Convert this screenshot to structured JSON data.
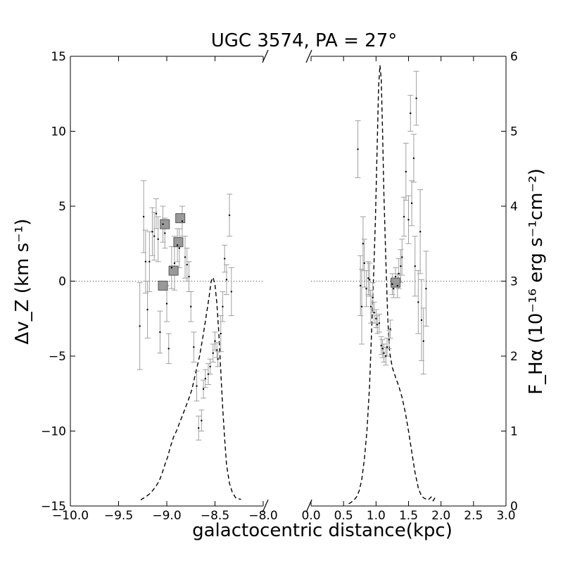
{
  "chart_data": {
    "type": "scatter",
    "title": "UGC 3574, PA = 27°",
    "xlabel": "galactocentric distance(kpc)",
    "ylabel": "Δv_Z (km s⁻¹)",
    "y2label": "F_Hα (10⁻¹⁶ erg s⁻¹cm⁻²)",
    "ylim": [
      -15,
      15
    ],
    "y2lim": [
      0,
      6
    ],
    "y_ticks": [
      -15,
      -10,
      -5,
      0,
      5,
      10,
      15
    ],
    "y2_ticks": [
      0,
      1,
      2,
      3,
      4,
      5,
      6
    ],
    "panels": [
      {
        "xlim": [
          -10.0,
          -8.0
        ],
        "x_ticks": [
          -10.0,
          -9.5,
          -9.0,
          -8.5,
          -8.0
        ],
        "velocity_points": [
          {
            "x": -9.28,
            "y": -3.0,
            "err": 2.9
          },
          {
            "x": -9.24,
            "y": 4.3,
            "err": 2.4
          },
          {
            "x": -9.22,
            "y": 1.3,
            "err": 2.1
          },
          {
            "x": -9.2,
            "y": -1.9,
            "err": 1.9
          },
          {
            "x": -9.18,
            "y": 1.3,
            "err": 2.0
          },
          {
            "x": -9.15,
            "y": 3.3,
            "err": 1.6
          },
          {
            "x": -9.13,
            "y": 3.0,
            "err": 1.6
          },
          {
            "x": -9.11,
            "y": 4.5,
            "err": 1.0
          },
          {
            "x": -9.09,
            "y": 2.8,
            "err": 1.5
          },
          {
            "x": -9.07,
            "y": -3.4,
            "err": 1.4
          },
          {
            "x": -9.04,
            "y": 3.8,
            "err": 1.2
          },
          {
            "x": -9.02,
            "y": 3.2,
            "err": 1.0
          },
          {
            "x": -9.0,
            "y": -1.5,
            "err": 1.2
          },
          {
            "x": -8.98,
            "y": -4.5,
            "err": 1.0
          },
          {
            "x": -8.95,
            "y": 0.9,
            "err": 1.4
          },
          {
            "x": -8.92,
            "y": 1.2,
            "err": 1.8
          },
          {
            "x": -8.89,
            "y": 2.4,
            "err": 1.1
          },
          {
            "x": -8.87,
            "y": 2.2,
            "err": 1.3
          },
          {
            "x": -8.84,
            "y": 4.0,
            "err": 1.0
          },
          {
            "x": -8.81,
            "y": 1.6,
            "err": 1.4
          },
          {
            "x": -8.79,
            "y": 1.1,
            "err": 1.1
          },
          {
            "x": -8.77,
            "y": 0.3,
            "err": 1.0
          },
          {
            "x": -8.75,
            "y": -1.7,
            "err": 1.0
          },
          {
            "x": -8.72,
            "y": -4.4,
            "err": 1.0
          },
          {
            "x": -8.69,
            "y": -7.0,
            "err": 1.0
          },
          {
            "x": -8.67,
            "y": -9.8,
            "err": 0.8
          },
          {
            "x": -8.64,
            "y": -9.3,
            "err": 0.7
          },
          {
            "x": -8.62,
            "y": -7.2,
            "err": 0.6
          },
          {
            "x": -8.6,
            "y": -6.5,
            "err": 0.6
          },
          {
            "x": -8.57,
            "y": -6.2,
            "err": 0.7
          },
          {
            "x": -8.55,
            "y": -5.7,
            "err": 0.5
          },
          {
            "x": -8.52,
            "y": -4.8,
            "err": 0.6
          },
          {
            "x": -8.5,
            "y": -4.0,
            "err": 0.6
          },
          {
            "x": -8.48,
            "y": -4.6,
            "err": 0.5
          },
          {
            "x": -8.47,
            "y": -5.2,
            "err": 0.5
          },
          {
            "x": -8.44,
            "y": -3.5,
            "err": 1.2
          },
          {
            "x": -8.42,
            "y": -1.7,
            "err": 1.0
          },
          {
            "x": -8.4,
            "y": 1.5,
            "err": 0.9
          },
          {
            "x": -8.38,
            "y": 0.1,
            "err": 1.0
          },
          {
            "x": -8.35,
            "y": 4.4,
            "err": 1.4
          },
          {
            "x": -8.33,
            "y": -0.7,
            "err": 1.6
          }
        ],
        "binned_points": [
          {
            "x": -9.02,
            "y": 3.8
          },
          {
            "x": -8.86,
            "y": 4.2
          },
          {
            "x": -8.88,
            "y": 2.6
          },
          {
            "x": -8.93,
            "y": 0.7
          },
          {
            "x": -9.04,
            "y": -0.3
          }
        ],
        "flux_profile": [
          [
            -9.27,
            0.08
          ],
          [
            -9.25,
            0.1
          ],
          [
            -9.22,
            0.12
          ],
          [
            -9.18,
            0.16
          ],
          [
            -9.15,
            0.2
          ],
          [
            -9.12,
            0.25
          ],
          [
            -9.08,
            0.33
          ],
          [
            -9.05,
            0.43
          ],
          [
            -9.02,
            0.55
          ],
          [
            -8.99,
            0.66
          ],
          [
            -8.96,
            0.8
          ],
          [
            -8.93,
            0.92
          ],
          [
            -8.9,
            1.0
          ],
          [
            -8.87,
            1.1
          ],
          [
            -8.84,
            1.2
          ],
          [
            -8.81,
            1.3
          ],
          [
            -8.78,
            1.4
          ],
          [
            -8.74,
            1.55
          ],
          [
            -8.7,
            1.78
          ],
          [
            -8.66,
            2.0
          ],
          [
            -8.62,
            2.3
          ],
          [
            -8.59,
            2.55
          ],
          [
            -8.56,
            2.8
          ],
          [
            -8.54,
            3.0
          ],
          [
            -8.52,
            3.05
          ],
          [
            -8.5,
            2.95
          ],
          [
            -8.48,
            2.7
          ],
          [
            -8.46,
            2.3
          ],
          [
            -8.44,
            1.8
          ],
          [
            -8.42,
            1.3
          ],
          [
            -8.4,
            0.9
          ],
          [
            -8.38,
            0.55
          ],
          [
            -8.35,
            0.3
          ],
          [
            -8.32,
            0.18
          ],
          [
            -8.28,
            0.1
          ],
          [
            -8.23,
            0.09
          ]
        ]
      },
      {
        "xlim": [
          0.0,
          3.0
        ],
        "x_ticks": [
          0.0,
          0.5,
          1.0,
          1.5,
          2.0,
          2.5,
          3.0
        ],
        "velocity_points": [
          {
            "x": 0.72,
            "y": 8.8,
            "err": 1.9
          },
          {
            "x": 0.76,
            "y": -0.3,
            "err": 2.0
          },
          {
            "x": 0.78,
            "y": -1.7,
            "err": 2.5
          },
          {
            "x": 0.8,
            "y": 2.5,
            "err": 1.8
          },
          {
            "x": 0.82,
            "y": 1.2,
            "err": 1.6
          },
          {
            "x": 0.85,
            "y": -0.5,
            "err": 1.2
          },
          {
            "x": 0.88,
            "y": 0.2,
            "err": 1.1
          },
          {
            "x": 0.9,
            "y": 0.1,
            "err": 1.1
          },
          {
            "x": 0.92,
            "y": -1.7,
            "err": 1.1
          },
          {
            "x": 0.95,
            "y": -1.1,
            "err": 1.0
          },
          {
            "x": 0.97,
            "y": -2.1,
            "err": 0.7
          },
          {
            "x": 1.0,
            "y": -2.5,
            "err": 0.6
          },
          {
            "x": 1.02,
            "y": -2.9,
            "err": 0.6
          },
          {
            "x": 1.05,
            "y": -2.8,
            "err": 0.6
          },
          {
            "x": 1.08,
            "y": -4.3,
            "err": 0.6
          },
          {
            "x": 1.1,
            "y": -4.5,
            "err": 0.6
          },
          {
            "x": 1.12,
            "y": -4.8,
            "err": 0.6
          },
          {
            "x": 1.15,
            "y": -5.0,
            "err": 0.6
          },
          {
            "x": 1.17,
            "y": -4.4,
            "err": 0.6
          },
          {
            "x": 1.2,
            "y": -3.9,
            "err": 0.6
          },
          {
            "x": 1.22,
            "y": -3.2,
            "err": 0.6
          },
          {
            "x": 1.25,
            "y": -0.2,
            "err": 0.7
          },
          {
            "x": 1.27,
            "y": -0.5,
            "err": 0.6
          },
          {
            "x": 1.3,
            "y": 0.3,
            "err": 0.6
          },
          {
            "x": 1.33,
            "y": -0.3,
            "err": 0.8
          },
          {
            "x": 1.35,
            "y": 0.5,
            "err": 1.0
          },
          {
            "x": 1.38,
            "y": 1.0,
            "err": 1.1
          },
          {
            "x": 1.4,
            "y": 1.6,
            "err": 1.2
          },
          {
            "x": 1.43,
            "y": 4.3,
            "err": 1.3
          },
          {
            "x": 1.46,
            "y": 7.3,
            "err": 1.9
          },
          {
            "x": 1.5,
            "y": 4.1,
            "err": 1.6
          },
          {
            "x": 1.53,
            "y": 11.2,
            "err": 1.2
          },
          {
            "x": 1.55,
            "y": 5.2,
            "err": 1.5
          },
          {
            "x": 1.58,
            "y": 8.2,
            "err": 1.6
          },
          {
            "x": 1.6,
            "y": 1.0,
            "err": 2.0
          },
          {
            "x": 1.62,
            "y": 12.2,
            "err": 1.8
          },
          {
            "x": 1.65,
            "y": -1.4,
            "err": 2.1
          },
          {
            "x": 1.68,
            "y": 3.3,
            "err": 2.8
          },
          {
            "x": 1.7,
            "y": -2.6,
            "err": 2.7
          },
          {
            "x": 1.73,
            "y": -4.0,
            "err": 2.2
          },
          {
            "x": 1.77,
            "y": -0.5,
            "err": 2.5
          }
        ],
        "binned_points": [
          {
            "x": 1.3,
            "y": -0.1
          }
        ],
        "flux_profile": [
          [
            0.58,
            0.03
          ],
          [
            0.62,
            0.05
          ],
          [
            0.66,
            0.08
          ],
          [
            0.7,
            0.12
          ],
          [
            0.74,
            0.2
          ],
          [
            0.78,
            0.35
          ],
          [
            0.82,
            0.62
          ],
          [
            0.86,
            1.0
          ],
          [
            0.9,
            1.6
          ],
          [
            0.93,
            2.3
          ],
          [
            0.96,
            3.0
          ],
          [
            0.99,
            3.8
          ],
          [
            1.02,
            4.9
          ],
          [
            1.04,
            5.6
          ],
          [
            1.06,
            5.88
          ],
          [
            1.08,
            5.7
          ],
          [
            1.1,
            5.0
          ],
          [
            1.12,
            4.2
          ],
          [
            1.15,
            3.3
          ],
          [
            1.18,
            2.5
          ],
          [
            1.21,
            2.05
          ],
          [
            1.25,
            1.85
          ],
          [
            1.3,
            1.72
          ],
          [
            1.35,
            1.6
          ],
          [
            1.4,
            1.45
          ],
          [
            1.45,
            1.25
          ],
          [
            1.5,
            1.0
          ],
          [
            1.55,
            0.72
          ],
          [
            1.6,
            0.45
          ],
          [
            1.65,
            0.24
          ],
          [
            1.7,
            0.13
          ],
          [
            1.75,
            0.1
          ],
          [
            1.8,
            0.08
          ],
          [
            1.85,
            0.12
          ],
          [
            1.88,
            0.07
          ],
          [
            1.92,
            0.13
          ]
        ]
      }
    ],
    "reference_line": {
      "y": 0,
      "style": "dotted"
    },
    "colors": {
      "errorbar": "#a0a0a0",
      "marker": "#000000",
      "binned_fill": "#999999",
      "binned_edge": "#555555",
      "flux_line": "#000000"
    },
    "grid": false,
    "legend": "none"
  }
}
